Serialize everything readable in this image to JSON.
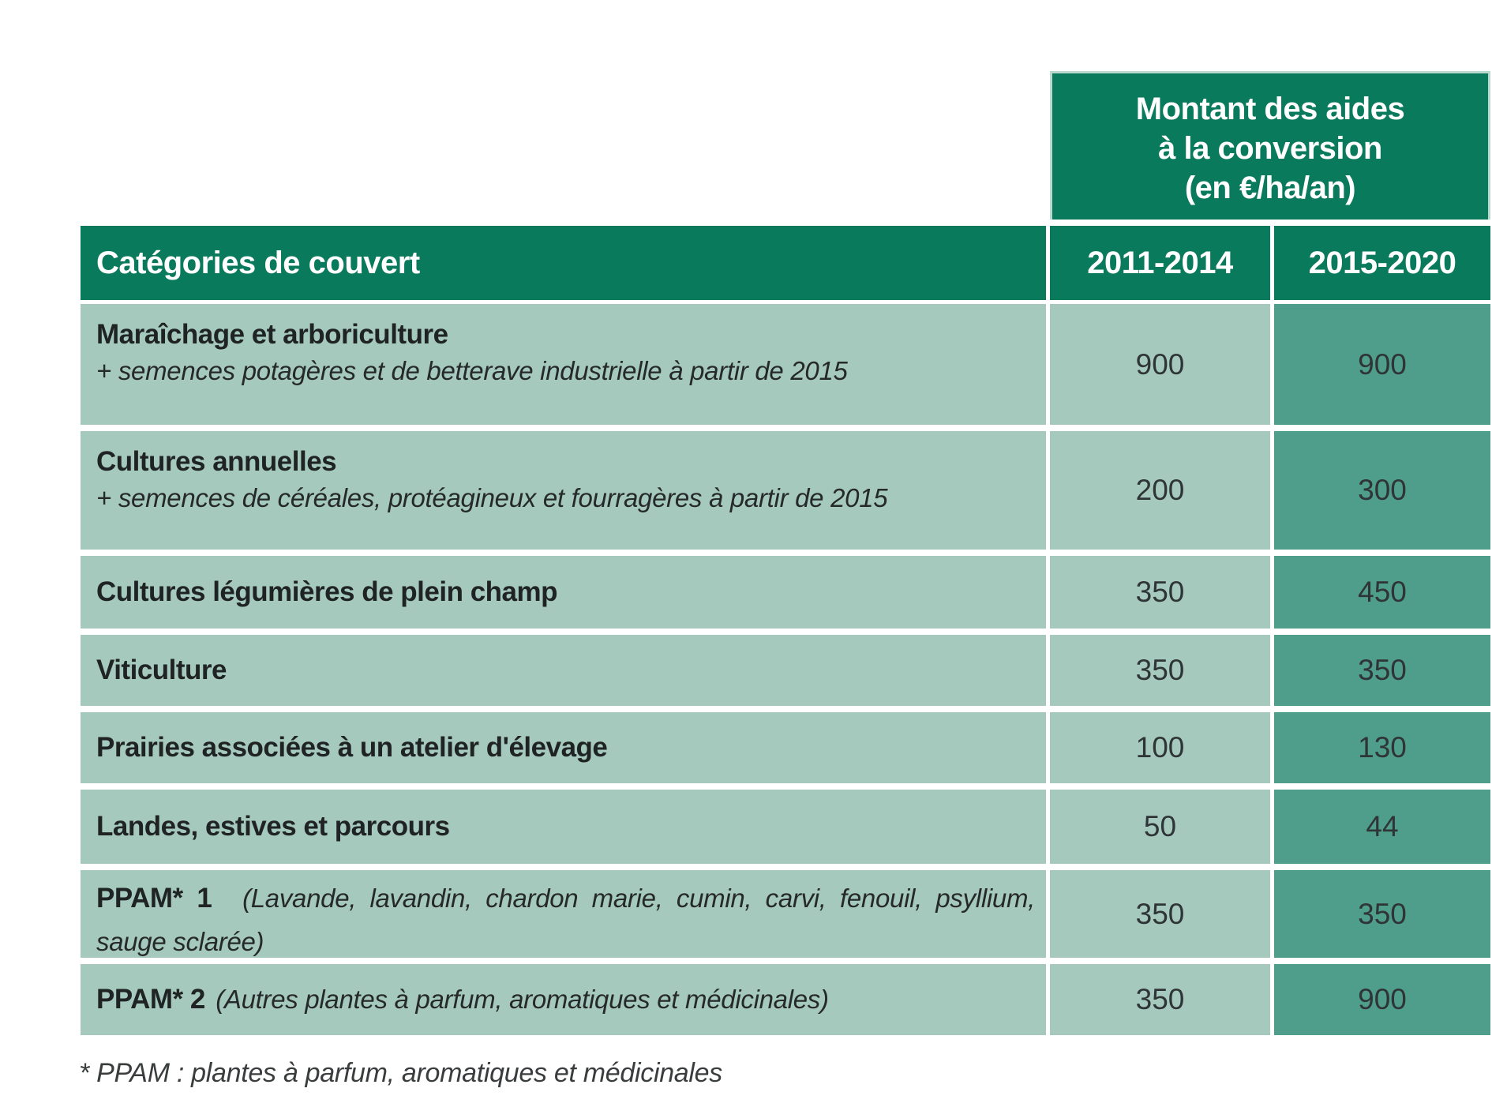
{
  "colors": {
    "dark_green": "#0a7a5c",
    "light_band": "#a5c9bc",
    "medium_band": "#4f9e8b",
    "header_text": "#ffffff",
    "body_text": "#2f3436"
  },
  "header_box": {
    "line1": "Montant des aides",
    "line2": "à la conversion",
    "line3": "(en €/ha/an)"
  },
  "column_headers": {
    "category": "Catégories de couvert",
    "period1": "2011-2014",
    "period2": "2015-2020"
  },
  "rows": [
    {
      "name": "Maraîchage et arboriculture",
      "note": "+ semences potagères et de betterave industrielle à partir de 2015",
      "aid_2011_2014": "900",
      "aid_2015_2020": "900"
    },
    {
      "name": "Cultures annuelles",
      "note": "+ semences de céréales, protéagineux et fourragères à partir de 2015",
      "aid_2011_2014": "200",
      "aid_2015_2020": "300"
    },
    {
      "name": "Cultures légumières de plein champ",
      "aid_2011_2014": "350",
      "aid_2015_2020": "450"
    },
    {
      "name": "Viticulture",
      "aid_2011_2014": "350",
      "aid_2015_2020": "350"
    },
    {
      "name": "Prairies associées à un atelier d'élevage",
      "aid_2011_2014": "100",
      "aid_2015_2020": "130"
    },
    {
      "name": "Landes, estives et parcours",
      "aid_2011_2014": "50",
      "aid_2015_2020": "44"
    },
    {
      "name": "PPAM* 1",
      "note_inline": "(Lavande, lavandin, chardon marie, cumin, carvi, fenouil, psyllium, sauge sclarée)",
      "aid_2011_2014": "350",
      "aid_2015_2020": "350"
    },
    {
      "name": "PPAM* 2",
      "note_inline": "(Autres plantes à parfum, aromatiques et médicinales)",
      "aid_2011_2014": "350",
      "aid_2015_2020": "900"
    }
  ],
  "footnote": "* PPAM : plantes à parfum, aromatiques et médicinales",
  "chart_data": {
    "type": "table",
    "title": "Montant des aides à la conversion (en €/ha/an)",
    "categories": [
      "Maraîchage et arboriculture",
      "Cultures annuelles",
      "Cultures légumières de plein champ",
      "Viticulture",
      "Prairies associées à un atelier d'élevage",
      "Landes, estives et parcours",
      "PPAM* 1",
      "PPAM* 2"
    ],
    "series": [
      {
        "name": "2011-2014",
        "values": [
          900,
          200,
          350,
          350,
          100,
          50,
          350,
          350
        ]
      },
      {
        "name": "2015-2020",
        "values": [
          900,
          300,
          450,
          350,
          130,
          44,
          350,
          900
        ]
      }
    ]
  }
}
